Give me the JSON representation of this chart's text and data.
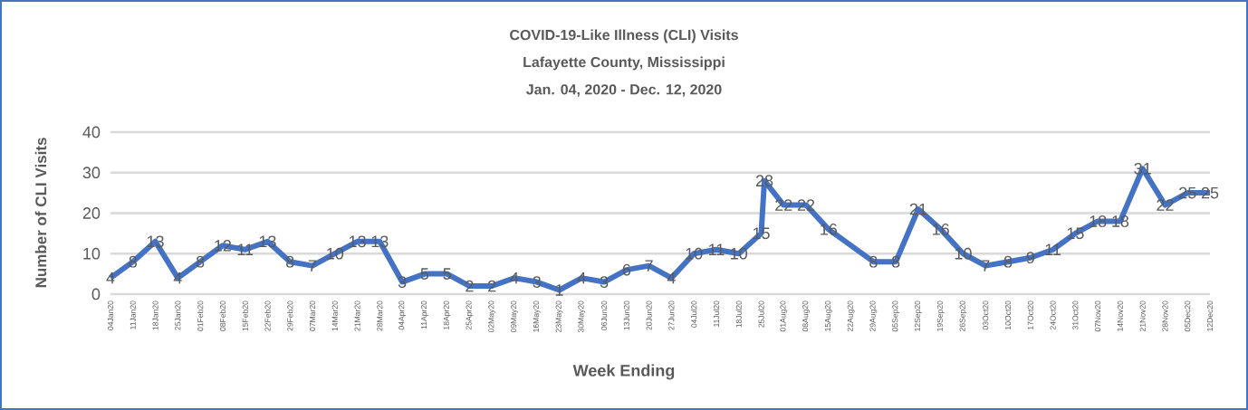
{
  "chart_data": {
    "type": "line",
    "title": "COVID-19-Like Illness (CLI) Visits",
    "subtitle": "Lafayette County, Mississippi",
    "annotations": [
      "Jan. 04, 2020 - Dec. 12, 2020"
    ],
    "xlabel": "Week Ending",
    "ylabel": "Number of CLI Visits",
    "x": [
      "2020-01-04",
      "2020-01-11",
      "2020-01-18",
      "2020-01-25",
      "2020-02-01",
      "2020-02-08",
      "2020-02-15",
      "2020-02-22",
      "2020-02-29",
      "2020-03-07",
      "2020-03-14",
      "2020-03-21",
      "2020-03-28",
      "2020-04-04",
      "2020-04-11",
      "2020-04-18",
      "2020-04-25",
      "2020-05-02",
      "2020-05-09",
      "2020-05-16",
      "2020-05-23",
      "2020-05-30",
      "2020-06-06",
      "2020-06-13",
      "2020-06-20",
      "2020-06-27",
      "2020-07-04",
      "2020-07-11",
      "2020-07-18",
      "2020-07-25",
      "2020-07-26",
      "2020-08-01",
      "2020-08-08",
      "2020-08-15",
      "2020-08-29",
      "2020-09-05",
      "2020-09-12",
      "2020-09-19",
      "2020-09-26",
      "2020-10-03",
      "2020-10-10",
      "2020-10-17",
      "2020-10-24",
      "2020-10-31",
      "2020-11-07",
      "2020-11-14",
      "2020-11-21",
      "2020-11-28",
      "2020-12-05",
      "2020-12-12"
    ],
    "values": [
      4,
      8,
      13,
      4,
      8,
      12,
      11,
      13,
      8,
      7,
      10,
      13,
      13,
      3,
      5,
      5,
      2,
      2,
      4,
      3,
      1,
      4,
      3,
      6,
      7,
      4,
      10,
      11,
      10,
      15,
      28,
      22,
      22,
      16,
      8,
      8,
      21,
      16,
      10,
      7,
      8,
      9,
      11,
      15,
      18,
      18,
      31,
      22,
      25,
      25
    ],
    "color": "#4472c4",
    "data_labels": true,
    "grid": "y",
    "ylim": [
      0,
      40
    ],
    "yticks": [
      0,
      10,
      20,
      30,
      40
    ],
    "xlim": [
      "2020-01-04",
      "2020-12-12"
    ],
    "xticks": [
      {
        "value": "2020-01-04",
        "label": "04Jan20"
      },
      {
        "value": "2020-01-11",
        "label": "11Jan20"
      },
      {
        "value": "2020-01-18",
        "label": "18Jan20"
      },
      {
        "value": "2020-01-25",
        "label": "25Jan20"
      },
      {
        "value": "2020-02-01",
        "label": "01Feb20"
      },
      {
        "value": "2020-02-08",
        "label": "08Feb20"
      },
      {
        "value": "2020-02-15",
        "label": "15Feb20"
      },
      {
        "value": "2020-02-22",
        "label": "22Feb20"
      },
      {
        "value": "2020-02-29",
        "label": "29Feb20"
      },
      {
        "value": "2020-03-07",
        "label": "07Mar20"
      },
      {
        "value": "2020-03-14",
        "label": "14Mar20"
      },
      {
        "value": "2020-03-21",
        "label": "21Mar20"
      },
      {
        "value": "2020-03-28",
        "label": "28Mar20"
      },
      {
        "value": "2020-04-04",
        "label": "04Apr20"
      },
      {
        "value": "2020-04-11",
        "label": "11Apr20"
      },
      {
        "value": "2020-04-18",
        "label": "18Apr20"
      },
      {
        "value": "2020-04-25",
        "label": "25Apr20"
      },
      {
        "value": "2020-05-02",
        "label": "02May20"
      },
      {
        "value": "2020-05-09",
        "label": "09May20"
      },
      {
        "value": "2020-05-16",
        "label": "16May20"
      },
      {
        "value": "2020-05-23",
        "label": "23May20"
      },
      {
        "value": "2020-05-30",
        "label": "30May20"
      },
      {
        "value": "2020-06-06",
        "label": "06Jun20"
      },
      {
        "value": "2020-06-13",
        "label": "13Jun20"
      },
      {
        "value": "2020-06-20",
        "label": "20Jun20"
      },
      {
        "value": "2020-06-27",
        "label": "27Jun20"
      },
      {
        "value": "2020-07-04",
        "label": "04Jul20"
      },
      {
        "value": "2020-07-11",
        "label": "11Jul20"
      },
      {
        "value": "2020-07-18",
        "label": "18Jul20"
      },
      {
        "value": "2020-07-25",
        "label": "25Jul20"
      },
      {
        "value": "2020-08-01",
        "label": "01Aug20"
      },
      {
        "value": "2020-08-08",
        "label": "08Aug20"
      },
      {
        "value": "2020-08-15",
        "label": "15Aug20"
      },
      {
        "value": "2020-08-22",
        "label": "22Aug20"
      },
      {
        "value": "2020-08-29",
        "label": "29Aug20"
      },
      {
        "value": "2020-09-05",
        "label": "05Sep20"
      },
      {
        "value": "2020-09-12",
        "label": "12Sep20"
      },
      {
        "value": "2020-09-19",
        "label": "19Sep20"
      },
      {
        "value": "2020-09-26",
        "label": "26Sep20"
      },
      {
        "value": "2020-10-03",
        "label": "03Oct20"
      },
      {
        "value": "2020-10-10",
        "label": "10Oct20"
      },
      {
        "value": "2020-10-17",
        "label": "17Oct20"
      },
      {
        "value": "2020-10-24",
        "label": "24Oct20"
      },
      {
        "value": "2020-10-31",
        "label": "31Oct20"
      },
      {
        "value": "2020-11-07",
        "label": "07Nov20"
      },
      {
        "value": "2020-11-14",
        "label": "14Nov20"
      },
      {
        "value": "2020-11-21",
        "label": "21Nov20"
      },
      {
        "value": "2020-11-28",
        "label": "28Nov20"
      },
      {
        "value": "2020-12-05",
        "label": "05Dec20"
      },
      {
        "value": "2020-12-12",
        "label": "12Dec20"
      }
    ]
  }
}
